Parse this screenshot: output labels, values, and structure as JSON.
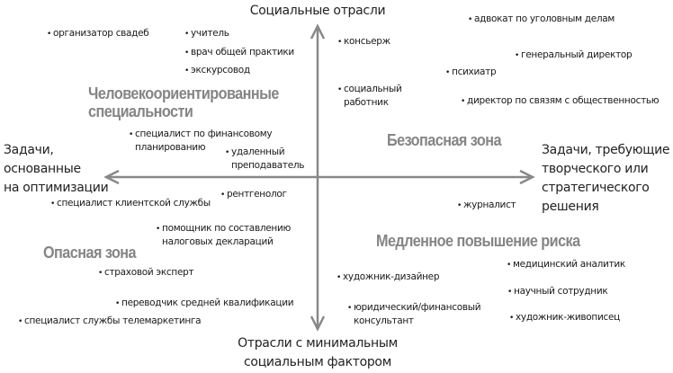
{
  "axes": {
    "top": "Социальные отрасли",
    "bottom": [
      "Отрасли с минимальным",
      "социальным фактором"
    ],
    "left": [
      "Задачи,",
      "основанные",
      "на оптимизации"
    ],
    "right": [
      "Задачи, требующие",
      "творческого или",
      "стратегического",
      "решения"
    ],
    "color": "#888888"
  },
  "zones": {
    "top_left": [
      "Человекоориентированные",
      "специальности"
    ],
    "top_right": "Безопасная зона",
    "bottom_left": "Опасная зона",
    "bottom_right": "Медленное повышение риска",
    "color": "#858585"
  },
  "items": [
    [
      "организатор свадеб"
    ],
    [
      "учитель"
    ],
    [
      "врач общей практики"
    ],
    [
      "экскурсовод"
    ],
    [
      "консьерж"
    ],
    [
      "адвокат по уголовным делам"
    ],
    [
      "генеральный директор"
    ],
    [
      "психиатр"
    ],
    [
      "социальный",
      "работник"
    ],
    [
      "директор по связям с общественностью"
    ],
    [
      "специалист по финансовому",
      "планированию"
    ],
    [
      "удаленный",
      "преподаватель"
    ],
    [
      "рентгенолог"
    ],
    [
      "специалист клиентской службы"
    ],
    [
      "помощник по составлению",
      "налоговых деклараций"
    ],
    [
      "страховой эксперт"
    ],
    [
      "переводчик средней квалификации"
    ],
    [
      "специалист службы телемаркетинга"
    ],
    [
      "журналист"
    ],
    [
      "медицинский аналитик"
    ],
    [
      "художник-дизайнер"
    ],
    [
      "научный сотрудник"
    ],
    [
      "юридический/финансовый",
      "консультант"
    ],
    [
      "художник-живописец"
    ]
  ]
}
